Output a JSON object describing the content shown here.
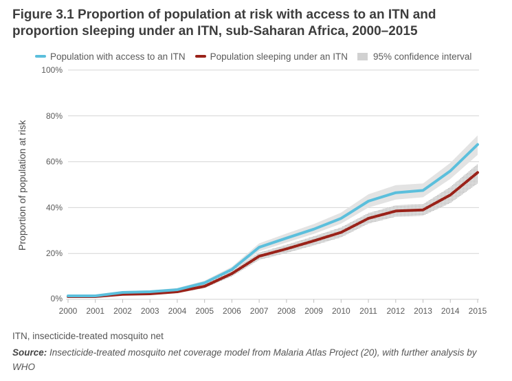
{
  "chart_data": {
    "type": "line",
    "title": "Figure 3.1 Proportion of population at risk with access to an ITN and proportion sleeping under an ITN, sub-Saharan Africa, 2000–2015",
    "xlabel": "",
    "ylabel": "Proportion of population at risk",
    "x": [
      2000,
      2001,
      2002,
      2003,
      2004,
      2005,
      2006,
      2007,
      2008,
      2009,
      2010,
      2011,
      2012,
      2013,
      2014,
      2015
    ],
    "x_tick_labels": [
      "2000",
      "2001",
      "2002",
      "2003",
      "2004",
      "2005",
      "2006",
      "2007",
      "2008",
      "2009",
      "2010",
      "2011",
      "2012",
      "2013",
      "2014",
      "2015"
    ],
    "ylim": [
      0,
      100
    ],
    "y_ticks": [
      0,
      20,
      40,
      60,
      80,
      100
    ],
    "y_tick_labels": [
      "0%",
      "20%",
      "40%",
      "60%",
      "80%",
      "100%"
    ],
    "grid": true,
    "legend_position": "top",
    "series": [
      {
        "name": "Population with access to an ITN",
        "color": "#5bbfdc",
        "values": [
          1.5,
          1.5,
          3.0,
          3.3,
          4.2,
          7.2,
          13.0,
          22.7,
          26.7,
          30.6,
          35.3,
          42.8,
          46.5,
          47.5,
          56.0,
          67.5
        ],
        "ci_lower": [
          1.0,
          1.0,
          2.4,
          2.7,
          3.5,
          6.3,
          11.8,
          21.0,
          24.8,
          28.5,
          33.0,
          40.0,
          43.5,
          44.5,
          52.5,
          63.0
        ],
        "ci_upper": [
          2.0,
          2.0,
          3.6,
          3.9,
          4.9,
          8.1,
          14.2,
          24.4,
          28.7,
          32.8,
          37.8,
          45.8,
          49.8,
          50.5,
          59.5,
          71.5
        ]
      },
      {
        "name": "Population sleeping under an ITN",
        "color": "#9a2219",
        "values": [
          1.2,
          1.2,
          2.2,
          2.4,
          3.3,
          5.7,
          11.2,
          18.8,
          22.0,
          25.5,
          29.2,
          35.3,
          38.5,
          39.0,
          45.5,
          55.3
        ],
        "ci_lower": [
          0.8,
          0.8,
          1.7,
          1.9,
          2.7,
          4.9,
          10.0,
          17.2,
          20.2,
          23.5,
          27.0,
          33.0,
          36.0,
          36.5,
          42.0,
          50.5
        ],
        "ci_upper": [
          1.6,
          1.6,
          2.7,
          2.9,
          3.9,
          6.5,
          12.4,
          20.4,
          23.8,
          27.5,
          31.4,
          37.6,
          41.0,
          41.5,
          49.0,
          59.0
        ]
      }
    ],
    "ci_label": "95% confidence interval"
  },
  "header": {
    "title": "Figure 3.1 Proportion of population at risk with access to an ITN and proportion sleeping under an ITN, sub-Saharan Africa, 2000–2015"
  },
  "legend": {
    "access_label": "Population with access to an ITN",
    "sleeping_label": "Population sleeping under an ITN",
    "ci_label": "95% confidence interval"
  },
  "footer": {
    "abbreviation": "ITN, insecticide-treated mosquito net",
    "source_prefix": "Source:",
    "source_text": " Insecticide-treated mosquito net coverage model from Malaria Atlas Project (20), with further analysis by WHO"
  }
}
